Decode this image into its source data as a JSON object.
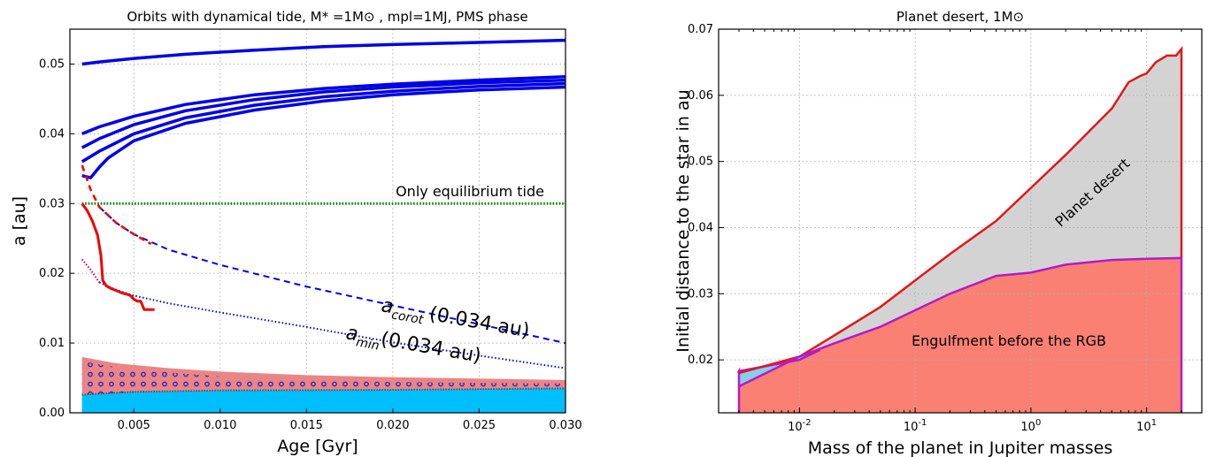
{
  "chart_data": [
    {
      "type": "line",
      "title": "Orbits with dynamical tide, M* =1M⊙ , mpl=1MJ, PMS phase",
      "xlabel": "Age [Gyr]",
      "ylabel": "a [au]",
      "xlim": [
        0.0013,
        0.03
      ],
      "ylim": [
        0.0,
        0.055
      ],
      "xticks": [
        0.005,
        0.01,
        0.015,
        0.02,
        0.025,
        0.03
      ],
      "xtick_labels": [
        "0.005",
        "0.010",
        "0.015",
        "0.020",
        "0.025",
        "0.030"
      ],
      "yticks": [
        0.0,
        0.01,
        0.02,
        0.03,
        0.04,
        0.05
      ],
      "ytick_labels": [
        "0.00",
        "0.01",
        "0.02",
        "0.03",
        "0.04",
        "0.05"
      ],
      "grid": true,
      "colors": {
        "orbit": "#0000e6",
        "engulf": "#ee0000",
        "equilibrium": "#008000",
        "region_pink": "#eb8585",
        "region_cyan": "#00bfff",
        "dots": "#2525c8"
      },
      "series": [
        {
          "style": "solid-blue",
          "x": [
            0.002,
            0.003,
            0.005,
            0.008,
            0.012,
            0.016,
            0.02,
            0.025,
            0.03
          ],
          "y": [
            0.05,
            0.0503,
            0.0508,
            0.0514,
            0.052,
            0.0525,
            0.0528,
            0.0531,
            0.0534
          ]
        },
        {
          "style": "solid-blue",
          "x": [
            0.002,
            0.003,
            0.005,
            0.008,
            0.012,
            0.016,
            0.02,
            0.025,
            0.03
          ],
          "y": [
            0.04,
            0.041,
            0.0425,
            0.0442,
            0.0456,
            0.0465,
            0.0471,
            0.0477,
            0.0482
          ]
        },
        {
          "style": "solid-blue",
          "x": [
            0.002,
            0.003,
            0.005,
            0.008,
            0.012,
            0.016,
            0.02,
            0.025,
            0.03
          ],
          "y": [
            0.038,
            0.0393,
            0.0413,
            0.0433,
            0.0449,
            0.046,
            0.0467,
            0.0473,
            0.0477
          ]
        },
        {
          "style": "solid-blue",
          "x": [
            0.002,
            0.003,
            0.005,
            0.008,
            0.012,
            0.016,
            0.02,
            0.025,
            0.03
          ],
          "y": [
            0.036,
            0.0375,
            0.04,
            0.0423,
            0.0441,
            0.0453,
            0.0461,
            0.0468,
            0.0472
          ]
        },
        {
          "style": "solid-blue",
          "x": [
            0.002,
            0.0025,
            0.003,
            0.0035,
            0.005,
            0.008,
            0.012,
            0.016,
            0.02,
            0.025,
            0.03
          ],
          "y": [
            0.034,
            0.0337,
            0.0352,
            0.0365,
            0.039,
            0.0415,
            0.0434,
            0.0447,
            0.0456,
            0.0463,
            0.0467
          ]
        },
        {
          "style": "dotted-green",
          "x": [
            0.002,
            0.03
          ],
          "y": [
            0.03,
            0.03
          ]
        },
        {
          "style": "dashed-blue",
          "x": [
            0.003,
            0.004,
            0.005,
            0.007,
            0.01,
            0.015,
            0.02,
            0.025,
            0.03
          ],
          "y": [
            0.0295,
            0.0272,
            0.0256,
            0.0234,
            0.0212,
            0.0181,
            0.0154,
            0.0127,
            0.01
          ]
        },
        {
          "style": "dashed-red",
          "x": [
            0.002,
            0.0025,
            0.003,
            0.004,
            0.005,
            0.006
          ],
          "y": [
            0.0355,
            0.032,
            0.0295,
            0.0272,
            0.0256,
            0.0242
          ]
        },
        {
          "style": "dotted-blue",
          "x": [
            0.003,
            0.004,
            0.005,
            0.007,
            0.01,
            0.015,
            0.02,
            0.025,
            0.03
          ],
          "y": [
            0.0187,
            0.0176,
            0.0168,
            0.0157,
            0.0144,
            0.0123,
            0.0101,
            0.0082,
            0.0064
          ]
        },
        {
          "style": "dotted-red",
          "x": [
            0.002,
            0.0025,
            0.003
          ],
          "y": [
            0.022,
            0.0205,
            0.0187
          ]
        },
        {
          "style": "solid-red",
          "x": [
            0.002,
            0.0023,
            0.0026,
            0.0029,
            0.0031,
            0.0032,
            0.0034,
            0.0037,
            0.004,
            0.0043,
            0.0046,
            0.0048,
            0.005,
            0.0052,
            0.0054,
            0.0056,
            0.0058,
            0.006,
            0.0062
          ],
          "y": [
            0.03,
            0.029,
            0.0275,
            0.0255,
            0.0225,
            0.019,
            0.0182,
            0.0178,
            0.0175,
            0.0172,
            0.017,
            0.0168,
            0.0163,
            0.016,
            0.016,
            0.0148,
            0.0148,
            0.0148,
            0.0148
          ]
        }
      ],
      "regions": {
        "pink_upper": {
          "x": [
            0.002,
            0.004,
            0.007,
            0.01,
            0.015,
            0.02,
            0.025,
            0.03
          ],
          "y": [
            0.008,
            0.0071,
            0.0064,
            0.0059,
            0.0054,
            0.0051,
            0.0049,
            0.0047
          ]
        },
        "cyan_upper": {
          "x": [
            0.002,
            0.005,
            0.01,
            0.02,
            0.03
          ],
          "y": [
            0.0026,
            0.003,
            0.0032,
            0.0033,
            0.0035
          ]
        },
        "dots_upper": {
          "x": [
            0.002,
            0.004,
            0.007,
            0.01,
            0.015,
            0.02,
            0.025,
            0.03
          ],
          "y": [
            0.0074,
            0.0065,
            0.0058,
            0.0052,
            0.0047,
            0.0044,
            0.0043,
            0.0042
          ]
        }
      },
      "annotations": {
        "equilibrium": "Only equilibrium tide",
        "corot_sym": "a",
        "corot_sub": "corot",
        "corot_val": "(0.034 au)",
        "min_sym": "a",
        "min_sub": "min",
        "min_val": "(0.034 au)"
      }
    },
    {
      "type": "area",
      "title": "Planet desert, 1M⊙",
      "xlabel": "Mass of the planet in Jupiter masses",
      "ylabel": "Initial distance to the star in au",
      "xscale": "log",
      "xlim": [
        0.002,
        30
      ],
      "ylim": [
        0.012,
        0.07
      ],
      "xtick_base": "10",
      "xtick_exponents": [
        "-2",
        "-1",
        "0",
        "1"
      ],
      "xtick_values": [
        0.01,
        0.1,
        1,
        10
      ],
      "yticks": [
        0.02,
        0.03,
        0.04,
        0.05,
        0.06,
        0.07
      ],
      "ytick_labels": [
        "0.02",
        "0.03",
        "0.04",
        "0.05",
        "0.06",
        "0.07"
      ],
      "grid": true,
      "colors": {
        "desert_fill": "#d3d3d3",
        "desert_edge": "#e0181b",
        "engulf_fill": "#f98073",
        "engulf_edge": "#b31bc9",
        "cyan_fill": "#87ceeb"
      },
      "upper_red": {
        "x": [
          0.003,
          0.01,
          0.02,
          0.05,
          0.1,
          0.2,
          0.5,
          1,
          2,
          5,
          7,
          9,
          10,
          12,
          15,
          18,
          20
        ],
        "y": [
          0.018,
          0.0205,
          0.0237,
          0.028,
          0.032,
          0.036,
          0.041,
          0.046,
          0.051,
          0.058,
          0.062,
          0.063,
          0.0633,
          0.065,
          0.066,
          0.066,
          0.067
        ]
      },
      "lower_purple": {
        "x": [
          0.003,
          0.01,
          0.02,
          0.05,
          0.1,
          0.2,
          0.5,
          1,
          2,
          5,
          10,
          20
        ],
        "y": [
          0.016,
          0.0205,
          0.0225,
          0.025,
          0.0275,
          0.03,
          0.0327,
          0.0332,
          0.0344,
          0.0351,
          0.0353,
          0.0354
        ]
      },
      "upper_purple": {
        "x": [
          0.003,
          0.01,
          0.015
        ],
        "y": [
          0.0183,
          0.02,
          0.0215
        ]
      },
      "mass_max": 20,
      "labels": {
        "desert": "Planet desert",
        "engulf": "Engulfment before the RGB"
      }
    }
  ]
}
